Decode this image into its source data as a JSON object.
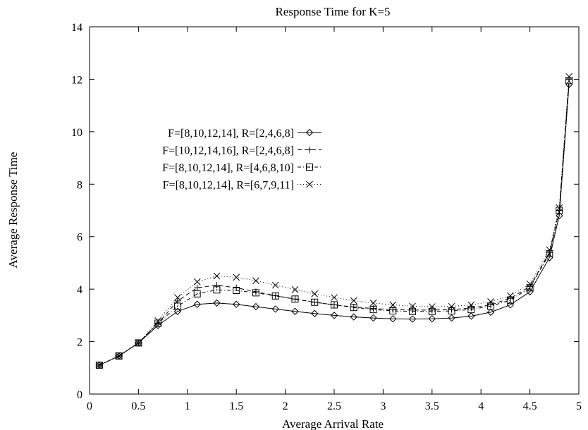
{
  "chart_data": {
    "type": "line",
    "title": "Response Time for K=5",
    "xlabel": "Average Arrival Rate",
    "ylabel": "Average Response Time",
    "xlim": [
      0,
      5
    ],
    "ylim": [
      0,
      14
    ],
    "xticks": [
      "0",
      "0.5",
      "1",
      "1.5",
      "2",
      "2.5",
      "3",
      "3.5",
      "4",
      "4.5",
      "5"
    ],
    "yticks": [
      "0",
      "2",
      "4",
      "6",
      "8",
      "10",
      "12",
      "14"
    ],
    "grid": false,
    "legend_position": "left-center",
    "x": [
      0.1,
      0.3,
      0.5,
      0.7,
      0.9,
      1.1,
      1.3,
      1.5,
      1.7,
      1.9,
      2.1,
      2.3,
      2.5,
      2.7,
      2.9,
      3.1,
      3.3,
      3.5,
      3.7,
      3.9,
      4.1,
      4.3,
      4.5,
      4.7,
      4.8,
      4.9
    ],
    "series": [
      {
        "name": "F=[8,10,12,14], R=[2,4,6,8]",
        "marker": "diamond",
        "dash": "solid",
        "values": [
          1.1,
          1.45,
          1.95,
          2.62,
          3.15,
          3.42,
          3.47,
          3.42,
          3.33,
          3.24,
          3.15,
          3.07,
          3.0,
          2.94,
          2.9,
          2.87,
          2.86,
          2.87,
          2.9,
          2.97,
          3.12,
          3.4,
          3.9,
          5.2,
          6.8,
          11.8
        ]
      },
      {
        "name": "F=[10,12,14,16], R=[2,4,6,8]",
        "marker": "plus",
        "dash": "dashed",
        "values": [
          1.1,
          1.45,
          1.95,
          2.7,
          3.55,
          4.05,
          4.15,
          4.05,
          3.9,
          3.75,
          3.62,
          3.5,
          3.4,
          3.32,
          3.26,
          3.22,
          3.2,
          3.2,
          3.22,
          3.28,
          3.4,
          3.65,
          4.1,
          5.4,
          7.0,
          12.0
        ]
      },
      {
        "name": "F=[8,10,12,14], R=[4,6,8,10]",
        "marker": "square",
        "dash": "dash-dot",
        "values": [
          1.1,
          1.45,
          1.95,
          2.7,
          3.35,
          3.82,
          3.97,
          3.95,
          3.86,
          3.74,
          3.62,
          3.5,
          3.4,
          3.3,
          3.22,
          3.17,
          3.15,
          3.15,
          3.17,
          3.22,
          3.35,
          3.58,
          4.05,
          5.35,
          7.0,
          11.95
        ]
      },
      {
        "name": "F=[8,10,12,14], R=[6,7,9,11]",
        "marker": "cross",
        "dash": "dotted",
        "values": [
          1.1,
          1.45,
          1.95,
          2.8,
          3.68,
          4.28,
          4.5,
          4.45,
          4.32,
          4.15,
          3.98,
          3.82,
          3.68,
          3.56,
          3.47,
          3.4,
          3.35,
          3.33,
          3.34,
          3.4,
          3.52,
          3.75,
          4.2,
          5.5,
          7.1,
          12.1
        ]
      }
    ]
  }
}
